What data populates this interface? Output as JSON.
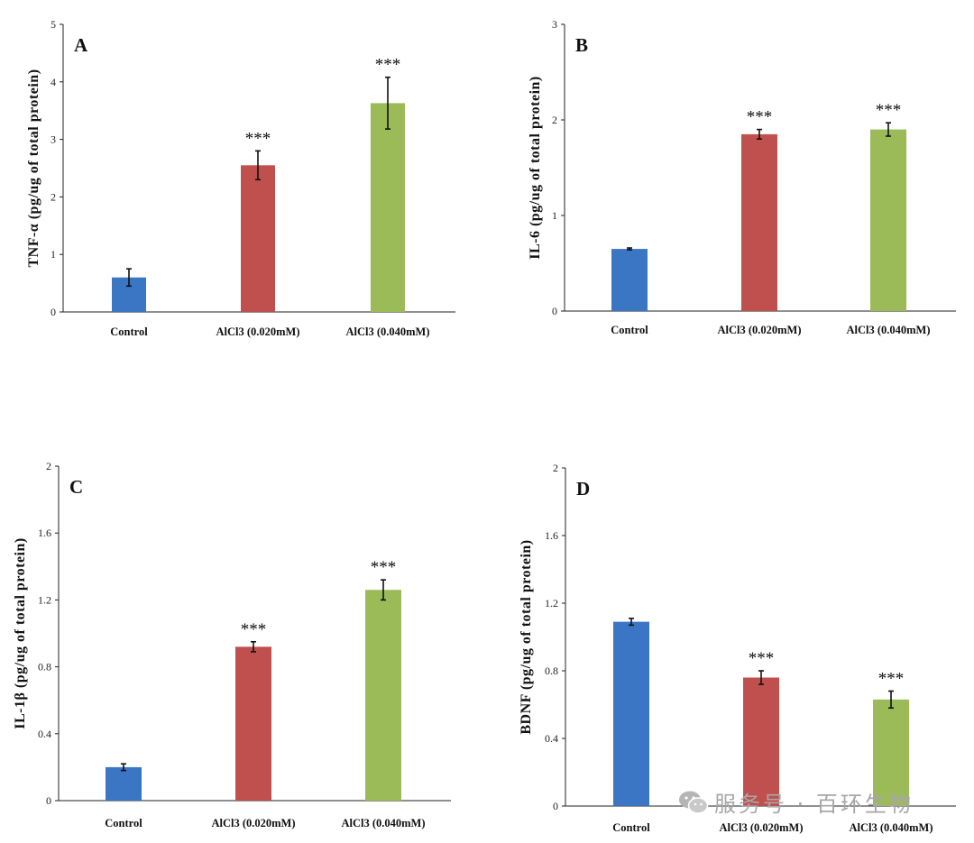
{
  "watermark": {
    "text": "服务号 · 百环生物",
    "icon": "wechat-icon"
  },
  "colors": {
    "Control": "#3a76c3",
    "AlCl3 (0.020mM)": "#c0504d",
    "AlCl3 (0.040mM)": "#9bbb59"
  },
  "chart_data": [
    {
      "type": "bar",
      "panel": "A",
      "ylabel": "TNF-α (pg/ug of total protein)",
      "ylim": [
        0,
        5
      ],
      "yticks": [
        "0",
        "1",
        "2",
        "3",
        "4",
        "5"
      ],
      "categories": [
        "Control",
        "AlCl3 (0.020mM)",
        "AlCl3 (0.040mM)"
      ],
      "values": [
        0.6,
        2.55,
        3.63
      ],
      "errors": [
        0.15,
        0.25,
        0.45
      ],
      "significance": [
        "",
        "***",
        "***"
      ]
    },
    {
      "type": "bar",
      "panel": "B",
      "ylabel": "IL-6 (pg/ug of total protein)",
      "ylim": [
        0,
        3
      ],
      "yticks": [
        "0",
        "1",
        "2",
        "3"
      ],
      "categories": [
        "Control",
        "AlCl3 (0.020mM)",
        "AlCl3 (0.040mM)"
      ],
      "values": [
        0.65,
        1.85,
        1.9
      ],
      "errors": [
        0.01,
        0.05,
        0.07
      ],
      "significance": [
        "",
        "***",
        "***"
      ]
    },
    {
      "type": "bar",
      "panel": "C",
      "ylabel": "IL-1β (pg/ug of total protein)",
      "ylim": [
        0,
        2
      ],
      "yticks": [
        "0",
        "0.4",
        "0.8",
        "1.2",
        "1.6",
        "2"
      ],
      "categories": [
        "Control",
        "AlCl3 (0.020mM)",
        "AlCl3 (0.040mM)"
      ],
      "values": [
        0.2,
        0.92,
        1.26
      ],
      "errors": [
        0.02,
        0.03,
        0.06
      ],
      "significance": [
        "",
        "***",
        "***"
      ]
    },
    {
      "type": "bar",
      "panel": "D",
      "ylabel": "BDNF (pg/ug of total protein)",
      "ylim": [
        0,
        2
      ],
      "yticks": [
        "0",
        "0.4",
        "0.8",
        "1.2",
        "1.6",
        "2"
      ],
      "categories": [
        "Control",
        "AlCl3 (0.020mM)",
        "AlCl3 (0.040mM)"
      ],
      "values": [
        1.09,
        0.76,
        0.63
      ],
      "errors": [
        0.02,
        0.04,
        0.05
      ],
      "significance": [
        "",
        "***",
        "***"
      ]
    }
  ]
}
